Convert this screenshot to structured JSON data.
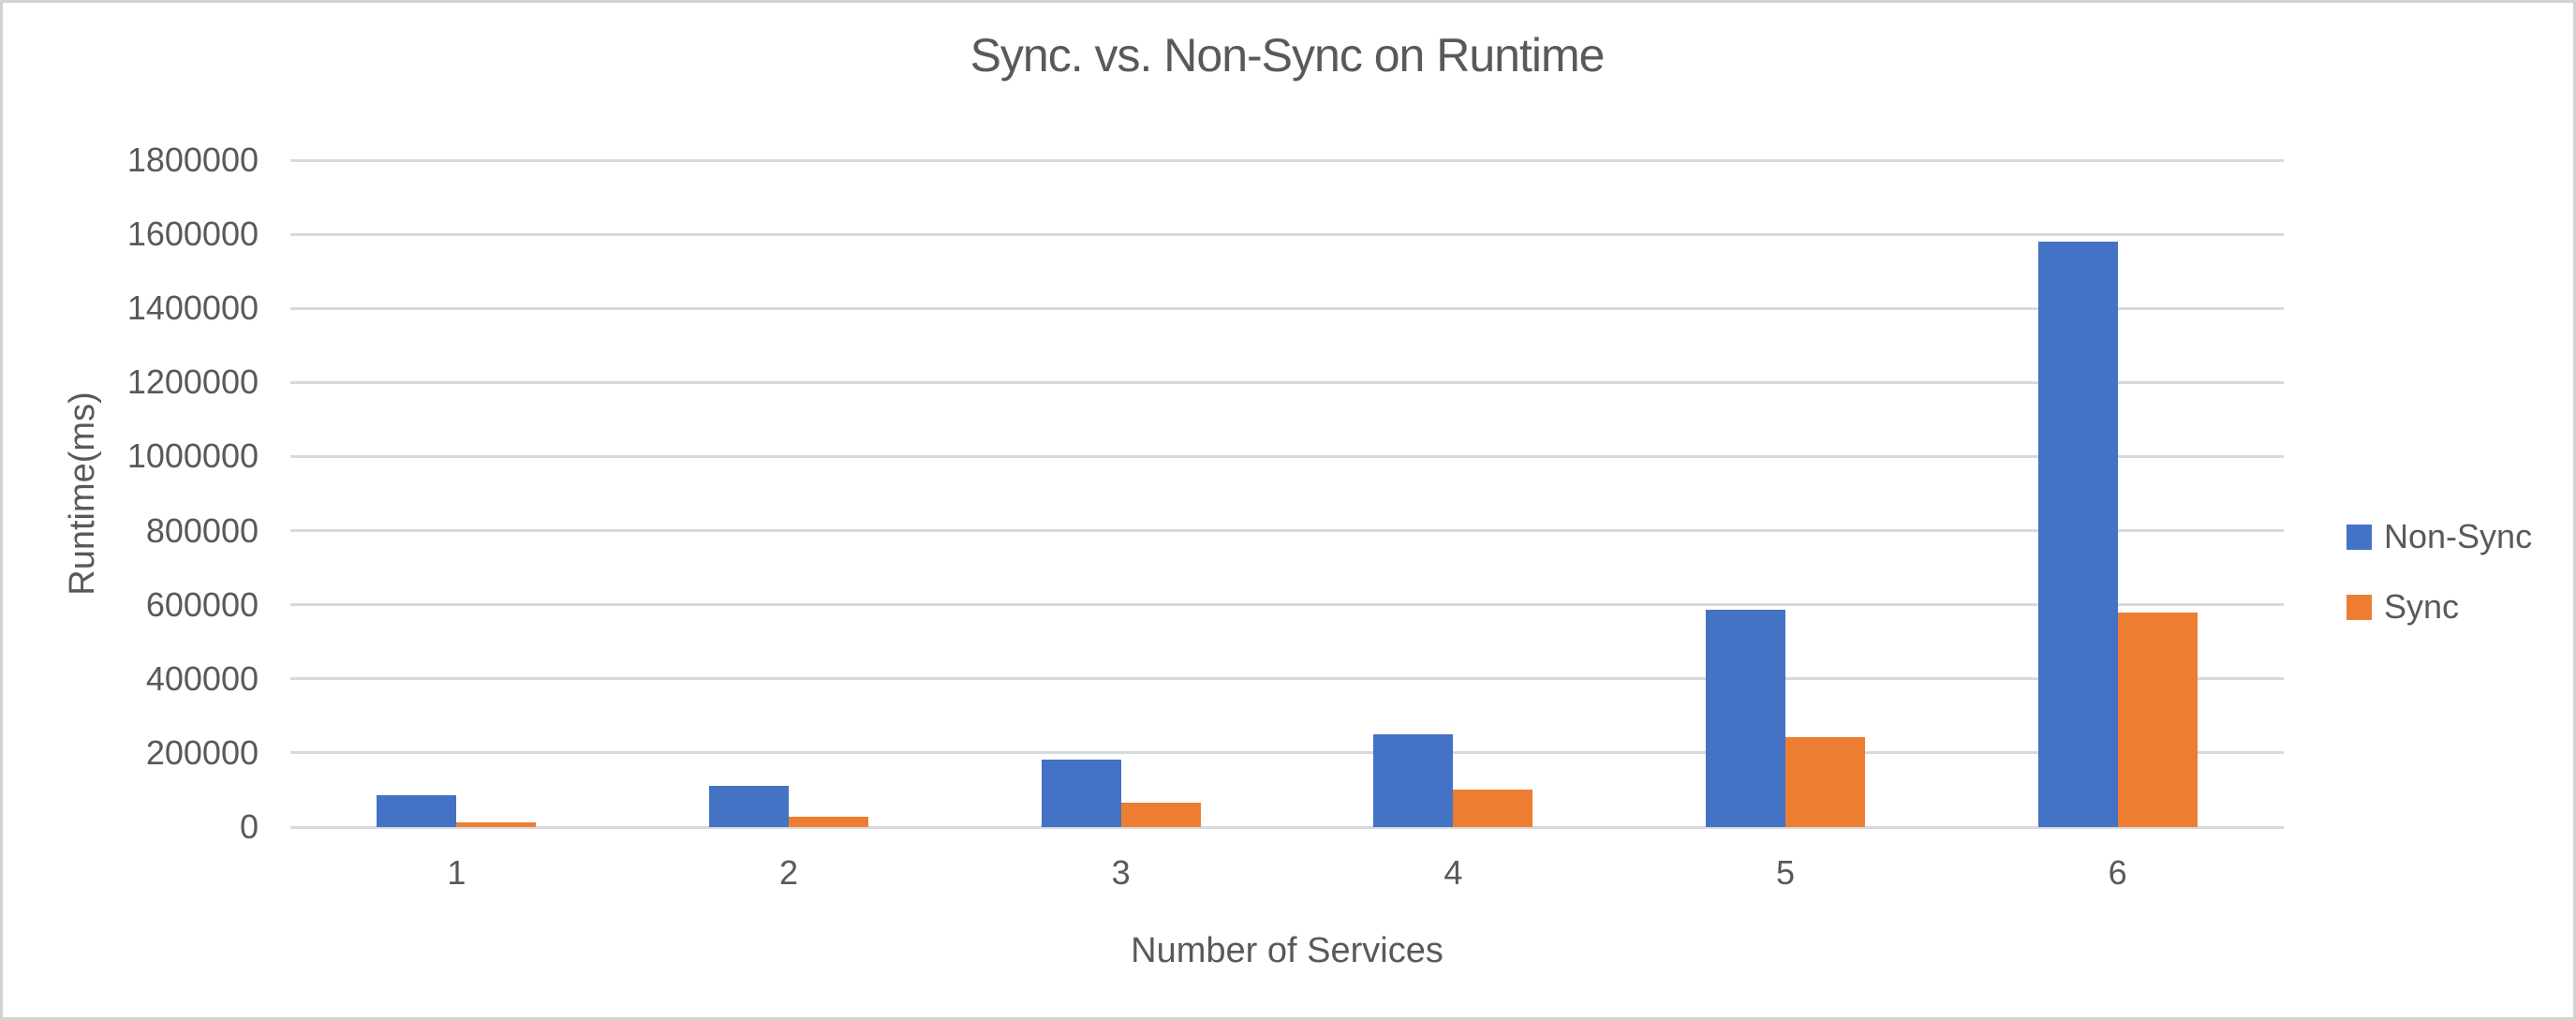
{
  "window": {
    "background": "#ffffff",
    "frame_border_color": "#d2d2d2"
  },
  "chart_data": {
    "type": "bar",
    "title": "Sync. vs. Non-Sync on Runtime",
    "xlabel": "Number of Services",
    "ylabel": "Runtime(ms)",
    "categories": [
      "1",
      "2",
      "3",
      "4",
      "5",
      "6"
    ],
    "series": [
      {
        "name": "Non-Sync",
        "color": "#4472C4",
        "values": [
          85000,
          112000,
          182000,
          250000,
          587000,
          1580000
        ]
      },
      {
        "name": "Sync",
        "color": "#ED7D31",
        "values": [
          13000,
          28000,
          65000,
          100000,
          243000,
          580000
        ]
      }
    ],
    "ylim": [
      0,
      1800000
    ],
    "ytick_step": 200000,
    "yticks": [
      0,
      200000,
      400000,
      600000,
      800000,
      1000000,
      1200000,
      1400000,
      1600000,
      1800000
    ],
    "grid": true,
    "legend_position": "right",
    "gridline_color": "#d9d9d9",
    "text_color": "#595959"
  }
}
